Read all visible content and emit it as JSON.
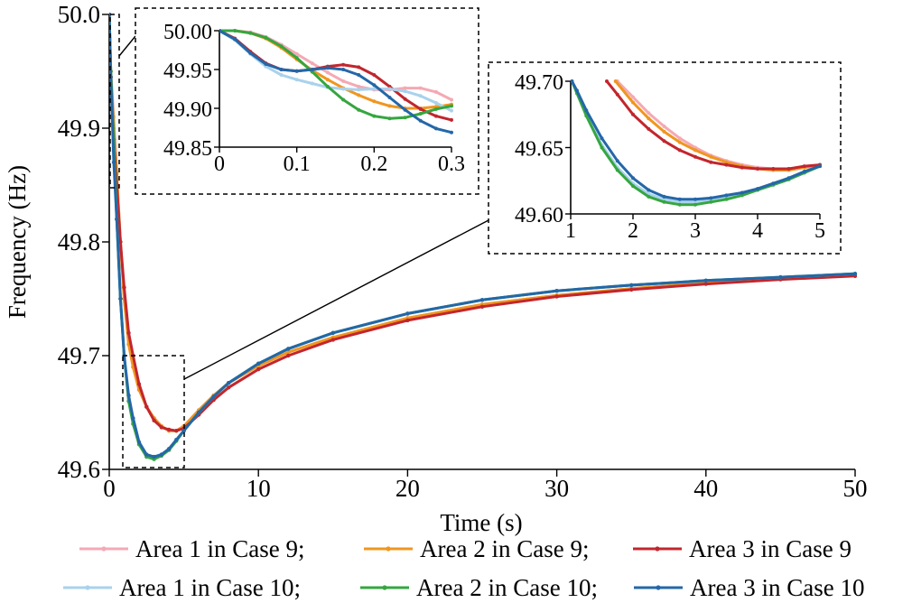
{
  "chart_data": [
    {
      "id": "main",
      "type": "line",
      "xlabel": "Time (s)",
      "ylabel": "Frequency (Hz)",
      "xlim": [
        0,
        50
      ],
      "ylim": [
        49.6,
        50.0
      ],
      "xticks": [
        0,
        10,
        20,
        30,
        40,
        50
      ],
      "yticks": [
        49.6,
        49.7,
        49.8,
        49.9,
        50.0
      ],
      "xtick_labels": [
        "0",
        "10",
        "20",
        "30",
        "40",
        "50"
      ],
      "ytick_labels": [
        "49.6",
        "49.7",
        "49.8",
        "49.9",
        "50.0"
      ],
      "zoom_boxes": [
        {
          "x": [
            0,
            0.3
          ],
          "y": [
            49.85,
            50.0
          ]
        },
        {
          "x": [
            1,
            5
          ],
          "y": [
            49.6,
            49.7
          ]
        }
      ],
      "series": [
        {
          "name": "Area 1 in Case 9",
          "color": "#f4a9b4",
          "x": [
            0,
            0.1,
            0.3,
            0.5,
            0.75,
            1,
            1.3,
            1.6,
            2,
            2.5,
            3,
            3.5,
            4,
            4.5,
            5,
            6,
            7,
            8,
            10,
            12,
            15,
            20,
            25,
            30,
            35,
            40,
            45,
            50
          ],
          "y": [
            50.0,
            49.95,
            49.91,
            49.86,
            49.8,
            49.75,
            49.71,
            49.69,
            49.67,
            49.655,
            49.645,
            49.638,
            49.634,
            49.634,
            49.638,
            49.652,
            49.665,
            49.676,
            49.691,
            49.703,
            49.716,
            49.733,
            49.745,
            49.753,
            49.759,
            49.764,
            49.768,
            49.771
          ]
        },
        {
          "name": "Area 2 in Case 9",
          "color": "#f0961f",
          "x": [
            0,
            0.1,
            0.3,
            0.5,
            0.75,
            1,
            1.3,
            1.6,
            2,
            2.5,
            3,
            3.5,
            4,
            4.5,
            5,
            6,
            7,
            8,
            10,
            12,
            15,
            20,
            25,
            30,
            35,
            40,
            45,
            50
          ],
          "y": [
            50.0,
            49.95,
            49.9,
            49.86,
            49.8,
            49.75,
            49.71,
            49.69,
            49.67,
            49.655,
            49.645,
            49.638,
            49.634,
            49.634,
            49.638,
            49.652,
            49.665,
            49.676,
            49.691,
            49.703,
            49.716,
            49.733,
            49.745,
            49.753,
            49.759,
            49.764,
            49.768,
            49.771
          ]
        },
        {
          "name": "Area 3 in Case 9",
          "color": "#c2262d",
          "x": [
            0,
            0.1,
            0.3,
            0.5,
            0.75,
            1,
            1.3,
            1.6,
            2,
            2.5,
            3,
            3.5,
            4,
            4.5,
            5,
            6,
            7,
            8,
            10,
            12,
            15,
            20,
            25,
            30,
            35,
            40,
            45,
            50
          ],
          "y": [
            50.0,
            49.945,
            49.89,
            49.85,
            49.8,
            49.76,
            49.72,
            49.7,
            49.675,
            49.655,
            49.643,
            49.637,
            49.635,
            49.634,
            49.636,
            49.648,
            49.661,
            49.672,
            49.688,
            49.7,
            49.714,
            49.731,
            49.743,
            49.752,
            49.758,
            49.763,
            49.767,
            49.77
          ]
        },
        {
          "name": "Area 1 in Case 10",
          "color": "#a9d2ec",
          "x": [
            0,
            0.1,
            0.3,
            0.5,
            0.75,
            1,
            1.3,
            1.6,
            2,
            2.5,
            3,
            3.5,
            4,
            4.5,
            5,
            6,
            7,
            8,
            10,
            12,
            15,
            20,
            25,
            30,
            35,
            40,
            45,
            50
          ],
          "y": [
            50.0,
            49.95,
            49.88,
            49.82,
            49.75,
            49.7,
            49.66,
            49.64,
            49.622,
            49.612,
            49.61,
            49.613,
            49.618,
            49.626,
            49.634,
            49.65,
            49.664,
            49.676,
            49.693,
            49.706,
            49.72,
            49.737,
            49.749,
            49.757,
            49.762,
            49.766,
            49.769,
            49.772
          ]
        },
        {
          "name": "Area 2 in Case 10",
          "color": "#35a63f",
          "x": [
            0,
            0.1,
            0.3,
            0.5,
            0.75,
            1,
            1.3,
            1.6,
            2,
            2.5,
            3,
            3.5,
            4,
            4.5,
            5,
            6,
            7,
            8,
            10,
            12,
            15,
            20,
            25,
            30,
            35,
            40,
            45,
            50
          ],
          "y": [
            50.0,
            49.95,
            49.89,
            49.82,
            49.75,
            49.7,
            49.66,
            49.64,
            49.622,
            49.611,
            49.609,
            49.612,
            49.617,
            49.625,
            49.634,
            49.65,
            49.664,
            49.676,
            49.693,
            49.706,
            49.72,
            49.737,
            49.749,
            49.757,
            49.762,
            49.766,
            49.769,
            49.772
          ]
        },
        {
          "name": "Area 3 in Case 10",
          "color": "#2467a8",
          "x": [
            0,
            0.1,
            0.3,
            0.5,
            0.75,
            1,
            1.3,
            1.6,
            2,
            2.5,
            3,
            3.5,
            4,
            4.5,
            5,
            6,
            7,
            8,
            10,
            12,
            15,
            20,
            25,
            30,
            35,
            40,
            45,
            50
          ],
          "y": [
            50.0,
            49.945,
            49.87,
            49.82,
            49.75,
            49.7,
            49.665,
            49.645,
            49.624,
            49.613,
            49.611,
            49.613,
            49.618,
            49.626,
            49.634,
            49.65,
            49.664,
            49.676,
            49.693,
            49.706,
            49.72,
            49.737,
            49.749,
            49.757,
            49.762,
            49.766,
            49.769,
            49.772
          ]
        }
      ]
    },
    {
      "id": "inset1",
      "type": "line",
      "xlim": [
        0,
        0.3
      ],
      "ylim": [
        49.85,
        50.0
      ],
      "xticks": [
        0,
        0.1,
        0.2,
        0.3
      ],
      "yticks": [
        49.85,
        49.9,
        49.95,
        50.0
      ],
      "xtick_labels": [
        "0",
        "0.1",
        "0.2",
        "0.3"
      ],
      "ytick_labels": [
        "49.85",
        "49.90",
        "49.95",
        "50.00"
      ],
      "series": [
        {
          "name": "Area 1 in Case 9",
          "color": "#f4a9b4",
          "x": [
            0,
            0.02,
            0.04,
            0.06,
            0.08,
            0.1,
            0.12,
            0.14,
            0.16,
            0.18,
            0.2,
            0.22,
            0.24,
            0.26,
            0.28,
            0.3
          ],
          "y": [
            50.0,
            50.0,
            49.998,
            49.992,
            49.982,
            49.97,
            49.958,
            49.946,
            49.935,
            49.928,
            49.924,
            49.924,
            49.926,
            49.926,
            49.921,
            49.911
          ]
        },
        {
          "name": "Area 2 in Case 9",
          "color": "#f0961f",
          "x": [
            0,
            0.02,
            0.04,
            0.06,
            0.08,
            0.1,
            0.12,
            0.14,
            0.16,
            0.18,
            0.2,
            0.22,
            0.24,
            0.26,
            0.28,
            0.3
          ],
          "y": [
            50.0,
            50.0,
            49.997,
            49.99,
            49.978,
            49.963,
            49.949,
            49.937,
            49.926,
            49.917,
            49.909,
            49.903,
            49.9,
            49.9,
            49.902,
            49.905
          ]
        },
        {
          "name": "Area 3 in Case 9",
          "color": "#c2262d",
          "x": [
            0,
            0.02,
            0.04,
            0.06,
            0.08,
            0.1,
            0.12,
            0.14,
            0.16,
            0.18,
            0.2,
            0.22,
            0.24,
            0.26,
            0.28,
            0.3
          ],
          "y": [
            50.0,
            49.99,
            49.973,
            49.958,
            49.95,
            49.948,
            49.95,
            49.954,
            49.956,
            49.953,
            49.943,
            49.928,
            49.912,
            49.899,
            49.89,
            49.885
          ]
        },
        {
          "name": "Area 1 in Case 10",
          "color": "#a9d2ec",
          "x": [
            0,
            0.02,
            0.04,
            0.06,
            0.08,
            0.1,
            0.12,
            0.14,
            0.16,
            0.18,
            0.2,
            0.22,
            0.24,
            0.26,
            0.28,
            0.3
          ],
          "y": [
            50.0,
            49.988,
            49.97,
            49.954,
            49.943,
            49.937,
            49.932,
            49.927,
            49.925,
            49.924,
            49.925,
            49.925,
            49.922,
            49.916,
            49.907,
            49.897
          ]
        },
        {
          "name": "Area 2 in Case 10",
          "color": "#35a63f",
          "x": [
            0,
            0.02,
            0.04,
            0.06,
            0.08,
            0.1,
            0.12,
            0.14,
            0.16,
            0.18,
            0.2,
            0.22,
            0.24,
            0.26,
            0.28,
            0.3
          ],
          "y": [
            50.0,
            50.0,
            49.997,
            49.991,
            49.98,
            49.965,
            49.947,
            49.928,
            49.911,
            49.898,
            49.89,
            49.887,
            49.888,
            49.893,
            49.899,
            49.903
          ]
        },
        {
          "name": "Area 3 in Case 10",
          "color": "#2467a8",
          "x": [
            0,
            0.02,
            0.04,
            0.06,
            0.08,
            0.1,
            0.12,
            0.14,
            0.16,
            0.18,
            0.2,
            0.22,
            0.24,
            0.26,
            0.28,
            0.3
          ],
          "y": [
            50.0,
            49.989,
            49.971,
            49.957,
            49.95,
            49.948,
            49.95,
            49.952,
            49.95,
            49.943,
            49.93,
            49.914,
            49.898,
            49.884,
            49.874,
            49.869
          ]
        }
      ]
    },
    {
      "id": "inset2",
      "type": "line",
      "xlim": [
        1,
        5
      ],
      "ylim": [
        49.6,
        49.7
      ],
      "xticks": [
        1,
        2,
        3,
        4,
        5
      ],
      "yticks": [
        49.6,
        49.65,
        49.7
      ],
      "xtick_labels": [
        "1",
        "2",
        "3",
        "4",
        "5"
      ],
      "ytick_labels": [
        "49.60",
        "49.65",
        "49.70"
      ],
      "series": [
        {
          "name": "Area 1 in Case 9",
          "color": "#f4a9b4",
          "x": [
            1.75,
            2,
            2.25,
            2.5,
            2.75,
            3,
            3.25,
            3.5,
            3.75,
            4,
            4.25,
            4.5,
            4.75,
            5
          ],
          "y": [
            49.7,
            49.688,
            49.676,
            49.666,
            49.657,
            49.65,
            49.644,
            49.64,
            49.637,
            49.635,
            49.634,
            49.634,
            49.635,
            49.637
          ]
        },
        {
          "name": "Area 2 in Case 9",
          "color": "#f0961f",
          "x": [
            1.72,
            2,
            2.25,
            2.5,
            2.75,
            3,
            3.25,
            3.5,
            3.75,
            4,
            4.25,
            4.5,
            4.75,
            5
          ],
          "y": [
            49.7,
            49.684,
            49.672,
            49.662,
            49.654,
            49.648,
            49.643,
            49.639,
            49.636,
            49.634,
            49.633,
            49.633,
            49.635,
            49.637
          ]
        },
        {
          "name": "Area 3 in Case 9",
          "color": "#c2262d",
          "x": [
            1.58,
            1.75,
            2,
            2.25,
            2.5,
            2.75,
            3,
            3.25,
            3.5,
            3.75,
            4,
            4.25,
            4.5,
            4.75,
            5
          ],
          "y": [
            49.7,
            49.69,
            49.675,
            49.664,
            49.655,
            49.648,
            49.643,
            49.639,
            49.637,
            49.635,
            49.634,
            49.634,
            49.634,
            49.636,
            49.637
          ]
        },
        {
          "name": "Area 1 in Case 10",
          "color": "#a9d2ec",
          "x": [
            1.02,
            1.1,
            1.25,
            1.5,
            1.75,
            2,
            2.25,
            2.5,
            2.75,
            3,
            3.25,
            3.5,
            3.75,
            4,
            4.25,
            4.5,
            4.75,
            5
          ],
          "y": [
            49.7,
            49.692,
            49.675,
            49.652,
            49.635,
            49.623,
            49.615,
            49.611,
            49.609,
            49.609,
            49.61,
            49.612,
            49.615,
            49.618,
            49.622,
            49.626,
            49.631,
            49.636
          ]
        },
        {
          "name": "Area 2 in Case 10",
          "color": "#35a63f",
          "x": [
            1.02,
            1.1,
            1.25,
            1.5,
            1.75,
            2,
            2.25,
            2.5,
            2.75,
            3,
            3.25,
            3.5,
            3.75,
            4,
            4.25,
            4.5,
            4.75,
            5
          ],
          "y": [
            49.7,
            49.691,
            49.674,
            49.65,
            49.633,
            49.621,
            49.613,
            49.609,
            49.607,
            49.607,
            49.609,
            49.611,
            49.614,
            49.618,
            49.622,
            49.626,
            49.631,
            49.636
          ]
        },
        {
          "name": "Area 3 in Case 10",
          "color": "#2467a8",
          "x": [
            1.02,
            1.1,
            1.25,
            1.5,
            1.75,
            2,
            2.25,
            2.5,
            2.75,
            3,
            3.25,
            3.5,
            3.75,
            4,
            4.25,
            4.5,
            4.75,
            5
          ],
          "y": [
            49.7,
            49.693,
            49.678,
            49.657,
            49.64,
            49.627,
            49.618,
            49.613,
            49.611,
            49.611,
            49.612,
            49.614,
            49.616,
            49.619,
            49.623,
            49.627,
            49.632,
            49.636
          ]
        }
      ]
    }
  ],
  "legend": {
    "rows": [
      [
        {
          "label": "Area 1 in Case 9;",
          "color": "#f4a9b4"
        },
        {
          "label": "Area 2 in Case 9;",
          "color": "#f0961f"
        },
        {
          "label": "Area 3 in Case 9",
          "color": "#c2262d"
        }
      ],
      [
        {
          "label": "Area 1 in Case 10;",
          "color": "#a9d2ec"
        },
        {
          "label": "Area 2 in Case 10;",
          "color": "#35a63f"
        },
        {
          "label": "Area 3 in Case 10",
          "color": "#2467a8"
        }
      ]
    ]
  }
}
